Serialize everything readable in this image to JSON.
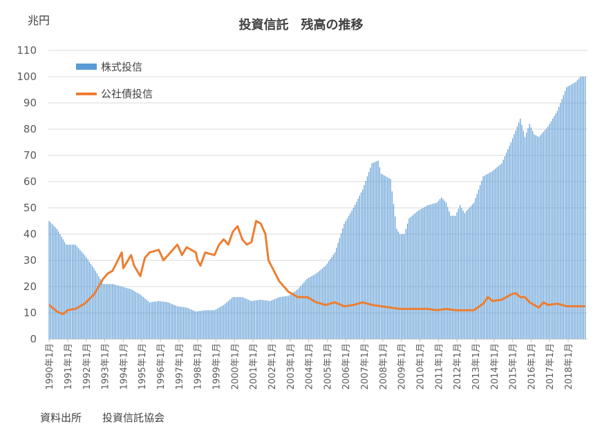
{
  "unit_label": "兆円",
  "source": {
    "label": "資料出所",
    "name": "投資信託協会"
  },
  "colors": {
    "stock_bar": "#5B9BD5",
    "bond_line": "#ED7D31",
    "grid": "#D9D9D9",
    "axis_text": "#595959"
  },
  "chart_data": {
    "type": "bar",
    "title": "投資信託　残高の推移",
    "ylabel": "兆円",
    "ylim": [
      0,
      110
    ],
    "yticks": [
      0,
      10,
      20,
      30,
      40,
      50,
      60,
      70,
      80,
      90,
      100,
      110
    ],
    "grid": true,
    "legend_placement": "top-left",
    "x_tick_labels": [
      "1990年1月",
      "1991年1月",
      "1992年1月",
      "1993年1月",
      "1994年1月",
      "1995年1月",
      "1996年1月",
      "1997年1月",
      "1998年1月",
      "1999年1月",
      "2000年1月",
      "2001年1月",
      "2002年1月",
      "2003年1月",
      "2004年1月",
      "2005年1月",
      "2006年1月",
      "2007年1月",
      "2008年1月",
      "2009年1月",
      "2010年1月",
      "2011年1月",
      "2012年1月",
      "2013年1月",
      "2014年1月",
      "2015年1月",
      "2016年1月",
      "2017年1月",
      "2018年1月"
    ],
    "x_start": "1990年1月",
    "x_end": "2018年12月",
    "series": [
      {
        "name": "株式投信",
        "type": "bar",
        "anchors": [
          [
            "1990年1月",
            45
          ],
          [
            "1990年6月",
            42
          ],
          [
            "1990年12月",
            36
          ],
          [
            "1991年6月",
            36
          ],
          [
            "1991年12月",
            32
          ],
          [
            "1992年6月",
            27
          ],
          [
            "1992年12月",
            21
          ],
          [
            "1993年6月",
            21
          ],
          [
            "1993年12月",
            20
          ],
          [
            "1994年6月",
            19
          ],
          [
            "1994年12月",
            17
          ],
          [
            "1995年6月",
            14
          ],
          [
            "1995年12月",
            14.5
          ],
          [
            "1996年6月",
            14
          ],
          [
            "1996年12月",
            12.5
          ],
          [
            "1997年6月",
            12
          ],
          [
            "1997年12月",
            10.5
          ],
          [
            "1998年6月",
            11
          ],
          [
            "1998年12月",
            11
          ],
          [
            "1999年6月",
            13
          ],
          [
            "1999年12月",
            16
          ],
          [
            "2000年6月",
            16
          ],
          [
            "2000年12月",
            14.5
          ],
          [
            "2001年6月",
            15
          ],
          [
            "2001年12月",
            14.5
          ],
          [
            "2002年6月",
            16
          ],
          [
            "2002年12月",
            16.5
          ],
          [
            "2003年6月",
            19
          ],
          [
            "2003年12月",
            23
          ],
          [
            "2004年6月",
            25
          ],
          [
            "2004年12月",
            28
          ],
          [
            "2005年6月",
            33
          ],
          [
            "2005年12月",
            44
          ],
          [
            "2006年6月",
            50
          ],
          [
            "2006年12月",
            57
          ],
          [
            "2007年6月",
            67
          ],
          [
            "2007年10月",
            68
          ],
          [
            "2007年12月",
            63
          ],
          [
            "2008年3月",
            62
          ],
          [
            "2008年6月",
            61
          ],
          [
            "2008年10月",
            42
          ],
          [
            "2008年12月",
            40
          ],
          [
            "2009年3月",
            40
          ],
          [
            "2009年6月",
            46
          ],
          [
            "2009年12月",
            49
          ],
          [
            "2010年6月",
            51
          ],
          [
            "2010年12月",
            52
          ],
          [
            "2011年3月",
            54
          ],
          [
            "2011年6月",
            52
          ],
          [
            "2011年9月",
            47
          ],
          [
            "2011年12月",
            47
          ],
          [
            "2012年3月",
            51
          ],
          [
            "2012年6月",
            48
          ],
          [
            "2012年12月",
            52
          ],
          [
            "2013年6月",
            62
          ],
          [
            "2013年12月",
            64
          ],
          [
            "2014年6月",
            67
          ],
          [
            "2014年12月",
            75
          ],
          [
            "2015年6月",
            84
          ],
          [
            "2015年9月",
            77
          ],
          [
            "2015年12月",
            82
          ],
          [
            "2016年3月",
            78
          ],
          [
            "2016年6月",
            77
          ],
          [
            "2016年12月",
            81
          ],
          [
            "2017年6月",
            87
          ],
          [
            "2017年12月",
            96
          ],
          [
            "2018年6月",
            98
          ],
          [
            "2018年9月",
            100
          ],
          [
            "2018年12月",
            100
          ]
        ]
      },
      {
        "name": "公社債投信",
        "type": "line",
        "anchors": [
          [
            "1990年1月",
            13
          ],
          [
            "1990年6月",
            10.5
          ],
          [
            "1990年10月",
            9.5
          ],
          [
            "1991年1月",
            11
          ],
          [
            "1991年6月",
            11.5
          ],
          [
            "1991年12月",
            13.5
          ],
          [
            "1992年6月",
            17
          ],
          [
            "1992年12月",
            23
          ],
          [
            "1993年3月",
            25
          ],
          [
            "1993年6月",
            26
          ],
          [
            "1993年12月",
            33
          ],
          [
            "1994年1月",
            27
          ],
          [
            "1994年6月",
            32
          ],
          [
            "1994年8月",
            28
          ],
          [
            "1994年12月",
            24
          ],
          [
            "1995年3月",
            31
          ],
          [
            "1995年6月",
            33
          ],
          [
            "1995年12月",
            34
          ],
          [
            "1996年3月",
            30
          ],
          [
            "1996年6月",
            32
          ],
          [
            "1996年12月",
            36
          ],
          [
            "1997年3月",
            32
          ],
          [
            "1997年6月",
            35
          ],
          [
            "1997年12月",
            33
          ],
          [
            "1998年1月",
            30
          ],
          [
            "1998年3月",
            28
          ],
          [
            "1998年6月",
            33
          ],
          [
            "1998年12月",
            32
          ],
          [
            "1999年3月",
            36
          ],
          [
            "1999年6月",
            38
          ],
          [
            "1999年9月",
            36
          ],
          [
            "1999年12月",
            41
          ],
          [
            "2000年3月",
            43
          ],
          [
            "2000年6月",
            38
          ],
          [
            "2000年9月",
            36
          ],
          [
            "2000年12月",
            37
          ],
          [
            "2001年3月",
            45
          ],
          [
            "2001年6月",
            44
          ],
          [
            "2001年9月",
            40
          ],
          [
            "2001年11月",
            30
          ],
          [
            "2002年6月",
            22
          ],
          [
            "2002年12月",
            18
          ],
          [
            "2003年6月",
            16
          ],
          [
            "2003年12月",
            16
          ],
          [
            "2004年6月",
            14
          ],
          [
            "2004年12月",
            13
          ],
          [
            "2005年6月",
            14
          ],
          [
            "2005年12月",
            12.5
          ],
          [
            "2006年6月",
            13
          ],
          [
            "2006年12月",
            14
          ],
          [
            "2007年6月",
            13
          ],
          [
            "2007年12月",
            12.5
          ],
          [
            "2008年6月",
            12
          ],
          [
            "2008年12月",
            11.5
          ],
          [
            "2009年6月",
            11.5
          ],
          [
            "2009年12月",
            11.5
          ],
          [
            "2010年6月",
            11.5
          ],
          [
            "2010年12月",
            11
          ],
          [
            "2011年6月",
            11.5
          ],
          [
            "2011年12月",
            11
          ],
          [
            "2012年6月",
            11
          ],
          [
            "2012年12月",
            11
          ],
          [
            "2013年6月",
            13.5
          ],
          [
            "2013年9月",
            16
          ],
          [
            "2013年12月",
            14.5
          ],
          [
            "2014年6月",
            15
          ],
          [
            "2014年12月",
            17
          ],
          [
            "2015年3月",
            17.5
          ],
          [
            "2015年6月",
            16
          ],
          [
            "2015年9月",
            16
          ],
          [
            "2015年12月",
            14
          ],
          [
            "2016年6月",
            12
          ],
          [
            "2016年9月",
            14
          ],
          [
            "2016年12月",
            13
          ],
          [
            "2017年6月",
            13.5
          ],
          [
            "2017年12月",
            12.5
          ],
          [
            "2018年3月",
            12.5
          ],
          [
            "2018年12月",
            12.5
          ]
        ]
      }
    ]
  }
}
